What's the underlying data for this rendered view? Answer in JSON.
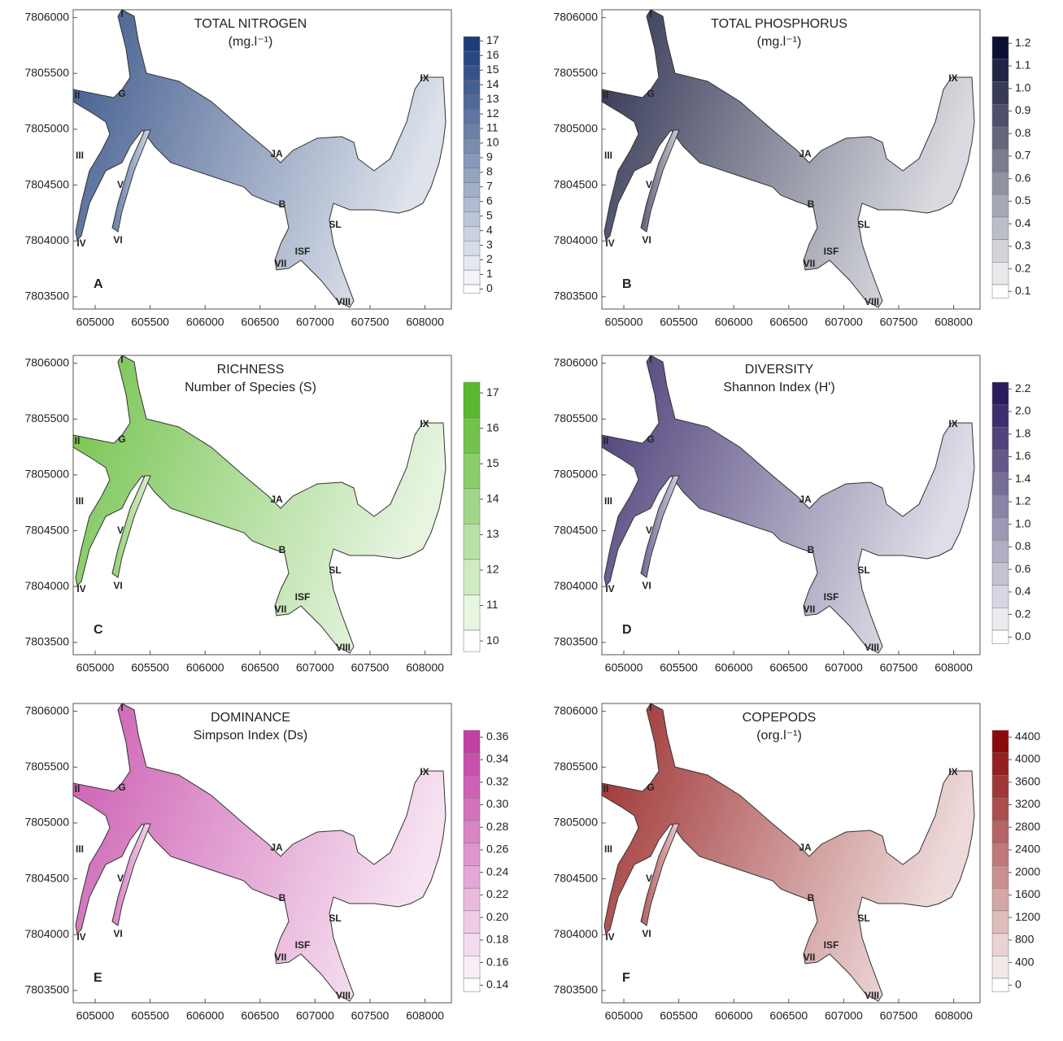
{
  "axes": {
    "xlim": [
      604800,
      608240
    ],
    "ylim": [
      7803390,
      7806070
    ],
    "xticks": [
      605000,
      605500,
      606000,
      606500,
      607000,
      607500,
      608000
    ],
    "yticks": [
      7803500,
      7804000,
      7804500,
      7805000,
      7805500,
      7806000
    ]
  },
  "sites": [
    "I",
    "II",
    "G",
    "III",
    "V",
    "IV",
    "VI",
    "JA",
    "B",
    "SL",
    "ISF",
    "VII",
    "VIII",
    "IX"
  ],
  "panels": [
    {
      "title": [
        "TOTAL NITROGEN",
        "(mg.l⁻¹)"
      ],
      "letter": "A",
      "colors": [
        "#ffffff",
        "#1c3d78"
      ],
      "colorbar_ticks": [
        0,
        1,
        2,
        3,
        4,
        5,
        6,
        7,
        8,
        9,
        10,
        11,
        12,
        13,
        14,
        15,
        16,
        17
      ]
    },
    {
      "title": [
        "TOTAL PHOSPHORUS",
        "(mg.l⁻¹)"
      ],
      "letter": "B",
      "colors": [
        "#ffffff",
        "#0b0f33"
      ],
      "colorbar_ticks": [
        0.1,
        0.2,
        0.3,
        0.4,
        0.5,
        0.6,
        0.7,
        0.8,
        0.9,
        {
          "value": 1,
          "label": "1.0"
        },
        1.1,
        1.2
      ]
    },
    {
      "title": [
        "RICHNESS",
        "Number of Species (S)"
      ],
      "letter": "C",
      "colors": [
        "#ffffff",
        "#5bb82e"
      ],
      "colorbar_ticks": [
        10,
        11,
        12,
        13,
        14,
        15,
        16,
        17
      ]
    },
    {
      "title": [
        "DIVERSITY",
        "Shannon Index (H')"
      ],
      "letter": "D",
      "colors": [
        "#ffffff",
        "#2a1a5e"
      ],
      "colorbar_ticks": [
        {
          "value": 0,
          "label": "0.0"
        },
        0.2,
        0.4,
        0.6,
        0.8,
        {
          "value": 1,
          "label": "1.0"
        },
        1.2,
        1.4,
        1.6,
        1.8,
        {
          "value": 2,
          "label": "2.0"
        },
        2.2
      ]
    },
    {
      "title": [
        "DOMINANCE",
        "Simpson Index (Ds)"
      ],
      "letter": "E",
      "colors": [
        "#ffffff",
        "#c23fa3"
      ],
      "colorbar_ticks": [
        0.14,
        0.16,
        0.18,
        {
          "value": 0.2,
          "label": "0.20"
        },
        0.22,
        0.24,
        0.26,
        0.28,
        {
          "value": 0.3,
          "label": "0.30"
        },
        0.32,
        0.34,
        0.36
      ]
    },
    {
      "title": [
        "COPEPODS",
        "(org.l⁻¹)"
      ],
      "letter": "F",
      "colors": [
        "#ffffff",
        "#8b0a0a"
      ],
      "colorbar_ticks": [
        0,
        400,
        800,
        1200,
        1600,
        2000,
        2400,
        2800,
        3200,
        3600,
        4000,
        4400
      ]
    }
  ]
}
